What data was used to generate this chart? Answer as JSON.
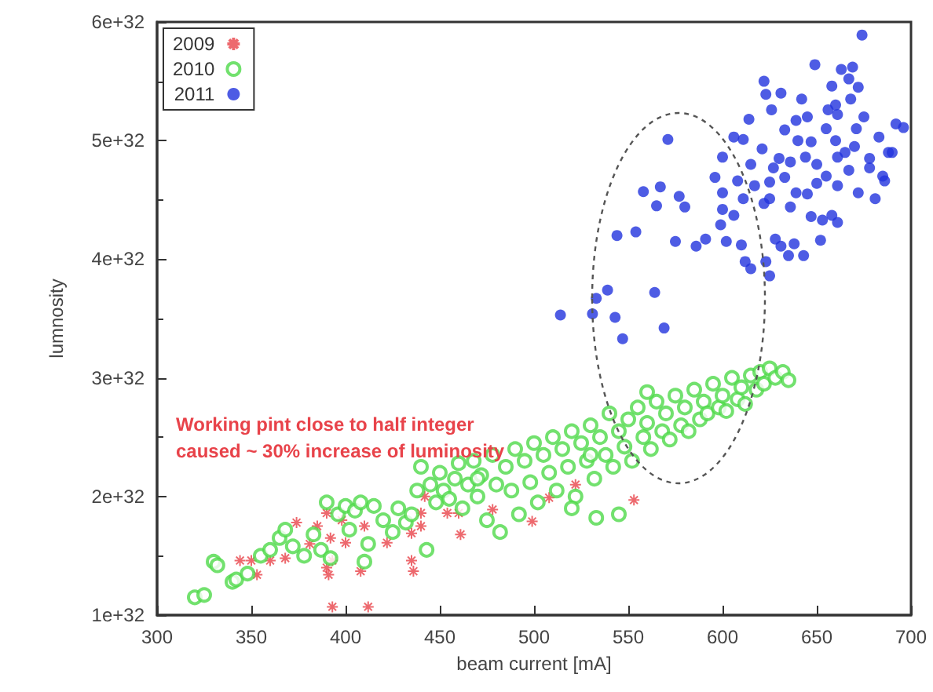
{
  "chart_data": {
    "type": "scatter",
    "xlabel": "beam current [mA]",
    "ylabel": "lumnosity",
    "annotations": [
      "Working pint close to half integer\ncaused ~ 30% increase of luminosity"
    ],
    "xlim": [
      300,
      700
    ],
    "xticks": [
      300,
      350,
      400,
      450,
      500,
      550,
      600,
      650,
      700
    ],
    "ylim": [
      1e+32,
      6e+32
    ],
    "yticks": [
      {
        "value": 1e+32,
        "label": "1e+32"
      },
      {
        "value": 2e+32,
        "label": "2e+32"
      },
      {
        "value": 3e+32,
        "label": "3e+32"
      },
      {
        "value": 4e+32,
        "label": "4e+32"
      },
      {
        "value": 5e+32,
        "label": "5e+32"
      },
      {
        "value": 6e+32,
        "label": "6e+32"
      }
    ],
    "grid": false,
    "legend": "top left",
    "series": [
      {
        "name": "2009",
        "color": "#e8434a",
        "marker": "cross",
        "x": [
          344,
          350,
          353,
          360,
          368,
          374,
          381,
          385,
          390,
          390,
          391,
          393,
          392,
          398,
          400,
          410,
          408,
          422,
          435,
          436,
          435,
          440,
          442,
          440,
          454,
          460,
          461,
          393,
          412,
          478,
          499,
          508,
          522,
          553
        ],
        "values": [
          1.46e+32,
          1.46e+32,
          1.34e+32,
          1.46e+32,
          1.48e+32,
          1.78e+32,
          1.6e+32,
          1.75e+32,
          1.86e+32,
          1.4e+32,
          1.34e+32,
          1.46e+32,
          1.65e+32,
          1.8e+32,
          1.61e+32,
          1.75e+32,
          1.37e+32,
          1.61e+32,
          1.46e+32,
          1.37e+32,
          1.69e+32,
          1.75e+32,
          2e+32,
          1.86e+32,
          1.86e+32,
          1.86e+32,
          1.68e+32,
          1.07e+32,
          1.07e+32,
          1.89e+32,
          1.79e+32,
          1.99e+32,
          2.1e+32,
          1.97e+32
        ]
      },
      {
        "name": "2010",
        "color": "#4fd94a",
        "marker": "circle-open",
        "x": [
          320,
          325,
          330,
          332,
          340,
          342,
          348,
          355,
          360,
          365,
          368,
          372,
          378,
          383,
          387,
          390,
          392,
          396,
          400,
          402,
          405,
          408,
          410,
          412,
          415,
          420,
          425,
          428,
          432,
          435,
          438,
          440,
          443,
          445,
          448,
          450,
          452,
          455,
          458,
          460,
          462,
          465,
          468,
          470,
          472,
          475,
          478,
          480,
          482,
          485,
          488,
          490,
          492,
          495,
          498,
          500,
          502,
          505,
          508,
          510,
          512,
          515,
          518,
          520,
          522,
          525,
          528,
          530,
          532,
          535,
          538,
          540,
          542,
          545,
          548,
          550,
          552,
          555,
          558,
          560,
          562,
          565,
          568,
          570,
          572,
          575,
          578,
          580,
          582,
          585,
          588,
          590,
          592,
          595,
          598,
          600,
          602,
          605,
          608,
          610,
          612,
          615,
          618,
          620,
          622,
          625,
          628,
          632,
          635,
          530,
          470,
          560,
          533,
          520,
          545
        ],
        "values": [
          1.15e+32,
          1.17e+32,
          1.45e+32,
          1.42e+32,
          1.28e+32,
          1.3e+32,
          1.35e+32,
          1.5e+32,
          1.55e+32,
          1.65e+32,
          1.72e+32,
          1.58e+32,
          1.5e+32,
          1.68e+32,
          1.55e+32,
          1.95e+32,
          1.48e+32,
          1.85e+32,
          1.92e+32,
          1.72e+32,
          1.88e+32,
          1.95e+32,
          1.45e+32,
          1.6e+32,
          1.92e+32,
          1.8e+32,
          1.7e+32,
          1.9e+32,
          1.78e+32,
          1.85e+32,
          2.05e+32,
          2.25e+32,
          1.55e+32,
          2.1e+32,
          1.95e+32,
          2.2e+32,
          2.05e+32,
          1.98e+32,
          2.15e+32,
          2.28e+32,
          1.9e+32,
          2.1e+32,
          2.3e+32,
          2e+32,
          2.18e+32,
          1.8e+32,
          2.35e+32,
          2.1e+32,
          1.7e+32,
          2.25e+32,
          2.05e+32,
          2.4e+32,
          1.85e+32,
          2.3e+32,
          2.12e+32,
          2.45e+32,
          1.95e+32,
          2.35e+32,
          2.2e+32,
          2.5e+32,
          2.05e+32,
          2.4e+32,
          2.25e+32,
          2.55e+32,
          2e+32,
          2.45e+32,
          2.3e+32,
          2.6e+32,
          2.15e+32,
          2.5e+32,
          2.35e+32,
          2.7e+32,
          2.25e+32,
          2.55e+32,
          2.42e+32,
          2.65e+32,
          2.3e+32,
          2.75e+32,
          2.5e+32,
          2.62e+32,
          2.4e+32,
          2.8e+32,
          2.55e+32,
          2.7e+32,
          2.48e+32,
          2.85e+32,
          2.6e+32,
          2.75e+32,
          2.55e+32,
          2.9e+32,
          2.65e+32,
          2.8e+32,
          2.7e+32,
          2.95e+32,
          2.75e+32,
          2.85e+32,
          2.72e+32,
          3e+32,
          2.82e+32,
          2.92e+32,
          2.78e+32,
          3.02e+32,
          2.9e+32,
          3.05e+32,
          2.95e+32,
          3.08e+32,
          3e+32,
          3.05e+32,
          2.98e+32,
          2.35e+32,
          2.15e+32,
          2.88e+32,
          1.82e+32,
          1.9e+32,
          1.85e+32
        ]
      },
      {
        "name": "2011",
        "color": "#2233dd",
        "marker": "circle",
        "x": [
          674,
          649,
          669,
          622,
          623,
          631,
          626,
          642,
          658,
          667,
          656,
          661,
          671,
          692,
          696,
          639,
          614,
          606,
          611,
          621,
          633,
          647,
          683,
          688,
          600,
          627,
          636,
          644,
          661,
          678,
          685,
          686,
          596,
          608,
          617,
          633,
          650,
          661,
          672,
          681,
          639,
          625,
          611,
          600,
          600,
          606,
          622,
          636,
          647,
          658,
          661,
          599,
          571,
          558,
          567,
          565,
          577,
          580,
          544,
          554,
          575,
          586,
          591,
          602,
          610,
          612,
          615,
          623,
          625,
          628,
          631,
          635,
          643,
          638,
          652,
          653,
          514,
          531,
          533,
          539,
          564,
          543,
          547,
          569,
          640,
          655,
          660,
          665,
          650,
          670,
          675,
          645,
          660,
          668,
          672,
          663,
          678,
          630,
          625,
          615,
          655,
          645,
          667,
          690
        ],
        "values": [
          5.89e+32,
          5.64e+32,
          5.62e+32,
          5.5e+32,
          5.39e+32,
          5.4e+32,
          5.26e+32,
          5.35e+32,
          5.46e+32,
          5.52e+32,
          5.26e+32,
          5.22e+32,
          5.1e+32,
          5.14e+32,
          5.11e+32,
          5.17e+32,
          5.18e+32,
          5.03e+32,
          5.01e+32,
          4.93e+32,
          5.09e+32,
          4.99e+32,
          5.03e+32,
          4.9e+32,
          4.86e+32,
          4.77e+32,
          4.82e+32,
          4.86e+32,
          4.86e+32,
          4.77e+32,
          4.7e+32,
          4.66e+32,
          4.69e+32,
          4.66e+32,
          4.62e+32,
          4.69e+32,
          4.64e+32,
          4.62e+32,
          4.56e+32,
          4.51e+32,
          4.56e+32,
          4.51e+32,
          4.51e+32,
          4.56e+32,
          4.42e+32,
          4.37e+32,
          4.47e+32,
          4.44e+32,
          4.36e+32,
          4.37e+32,
          4.31e+32,
          4.29e+32,
          5.01e+32,
          4.57e+32,
          4.61e+32,
          4.45e+32,
          4.53e+32,
          4.44e+32,
          4.2e+32,
          4.23e+32,
          4.15e+32,
          4.11e+32,
          4.17e+32,
          4.15e+32,
          4.12e+32,
          3.98e+32,
          3.92e+32,
          3.98e+32,
          3.86e+32,
          4.17e+32,
          4.11e+32,
          4.03e+32,
          4.03e+32,
          4.13e+32,
          4.16e+32,
          4.33e+32,
          3.53e+32,
          3.54e+32,
          3.67e+32,
          3.74e+32,
          3.72e+32,
          3.51e+32,
          3.33e+32,
          3.42e+32,
          5e+32,
          5.1e+32,
          5e+32,
          4.9e+32,
          4.8e+32,
          4.95e+32,
          5.2e+32,
          5.2e+32,
          5.3e+32,
          5.35e+32,
          5.45e+32,
          5.6e+32,
          4.85e+32,
          4.85e+32,
          4.65e+32,
          4.8e+32,
          4.7e+32,
          4.55e+32,
          4.75e+32,
          4.9e+32
        ]
      }
    ]
  }
}
